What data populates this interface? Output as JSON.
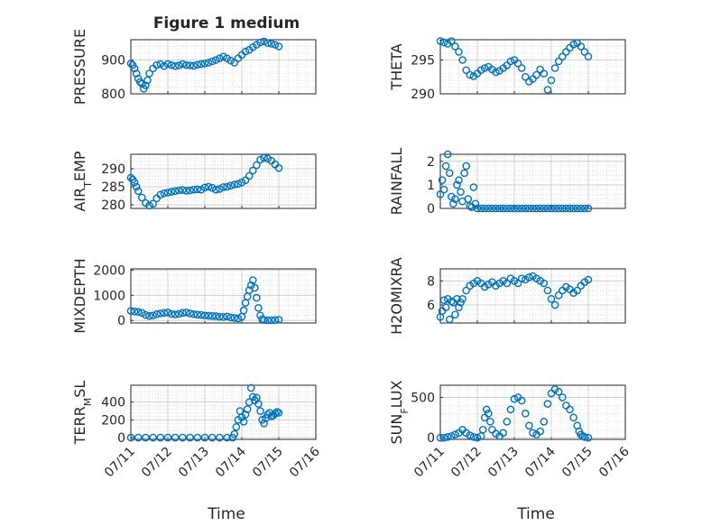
{
  "figure_title": "Figure 1 medium",
  "x_axis_label": "Time",
  "x_tick_labels": [
    "07/11",
    "07/12",
    "07/13",
    "07/14",
    "07/15",
    "07/16"
  ],
  "colors": {
    "marker": "#0072BD",
    "axes": "#262626",
    "grid": "#c8c8c8"
  },
  "chart_data": [
    {
      "type": "scatter",
      "ylabel": "PRESSURE",
      "title": "Figure 1 medium",
      "xlim": [
        "07/11",
        "07/16"
      ],
      "ylim": [
        800,
        960
      ],
      "yticks": [
        800,
        900
      ],
      "grid": true,
      "x": [
        11.0,
        11.05,
        11.1,
        11.15,
        11.2,
        11.25,
        11.3,
        11.35,
        11.4,
        11.45,
        11.5,
        11.6,
        11.7,
        11.8,
        11.9,
        12.0,
        12.1,
        12.2,
        12.3,
        12.4,
        12.5,
        12.6,
        12.7,
        12.8,
        12.9,
        13.0,
        13.1,
        13.2,
        13.3,
        13.4,
        13.5,
        13.6,
        13.7,
        13.8,
        13.9,
        14.0,
        14.1,
        14.2,
        14.3,
        14.4,
        14.5,
        14.6,
        14.7,
        14.8,
        14.9,
        15.0
      ],
      "y": [
        890,
        885,
        875,
        860,
        845,
        835,
        830,
        815,
        825,
        840,
        860,
        875,
        885,
        888,
        882,
        888,
        885,
        882,
        884,
        888,
        885,
        884,
        883,
        886,
        888,
        890,
        892,
        896,
        900,
        905,
        910,
        905,
        898,
        892,
        905,
        915,
        925,
        930,
        938,
        945,
        952,
        955,
        950,
        948,
        945,
        940
      ]
    },
    {
      "type": "scatter",
      "ylabel": "THETA",
      "xlim": [
        "07/11",
        "07/16"
      ],
      "ylim": [
        290,
        298
      ],
      "yticks": [
        290,
        295
      ],
      "grid": true,
      "x": [
        11.0,
        11.1,
        11.2,
        11.3,
        11.4,
        11.5,
        11.6,
        11.7,
        11.8,
        11.9,
        12.0,
        12.1,
        12.2,
        12.3,
        12.4,
        12.5,
        12.6,
        12.7,
        12.8,
        12.9,
        13.0,
        13.1,
        13.2,
        13.3,
        13.4,
        13.5,
        13.6,
        13.7,
        13.8,
        13.9,
        14.0,
        14.1,
        14.2,
        14.3,
        14.4,
        14.5,
        14.6,
        14.7,
        14.8,
        14.9,
        15.0
      ],
      "y": [
        297.8,
        297.6,
        297.4,
        297.8,
        297.0,
        296.2,
        295.0,
        293.5,
        292.8,
        292.6,
        293.0,
        293.5,
        293.8,
        294.0,
        293.6,
        293.2,
        293.4,
        293.8,
        294.2,
        294.8,
        295.0,
        294.5,
        293.8,
        292.5,
        291.8,
        292.2,
        292.8,
        293.6,
        293.0,
        290.6,
        292.0,
        293.8,
        294.8,
        295.5,
        296.2,
        296.8,
        297.3,
        297.5,
        297.0,
        296.2,
        295.5
      ]
    },
    {
      "type": "scatter",
      "ylabel": "AIR_TEMP",
      "xlim": [
        "07/11",
        "07/16"
      ],
      "ylim": [
        279,
        294
      ],
      "yticks": [
        280,
        285,
        290
      ],
      "grid": true,
      "x": [
        11.0,
        11.05,
        11.1,
        11.15,
        11.2,
        11.3,
        11.4,
        11.5,
        11.6,
        11.7,
        11.8,
        11.9,
        12.0,
        12.1,
        12.2,
        12.3,
        12.4,
        12.5,
        12.6,
        12.7,
        12.8,
        12.9,
        13.0,
        13.1,
        13.2,
        13.3,
        13.4,
        13.5,
        13.6,
        13.7,
        13.8,
        13.9,
        14.0,
        14.1,
        14.2,
        14.3,
        14.4,
        14.5,
        14.6,
        14.7,
        14.8,
        14.9,
        15.0
      ],
      "y": [
        287.5,
        287.0,
        286.2,
        285.0,
        283.8,
        282.0,
        280.5,
        279.8,
        280.3,
        281.8,
        282.8,
        283.2,
        283.4,
        283.6,
        283.8,
        284.0,
        284.1,
        283.9,
        284.0,
        284.2,
        284.3,
        284.2,
        284.8,
        285.0,
        284.7,
        284.2,
        284.4,
        284.9,
        285.0,
        285.3,
        285.6,
        285.8,
        286.2,
        286.8,
        288.0,
        289.5,
        291.0,
        292.5,
        293.0,
        292.8,
        292.2,
        291.2,
        290.2
      ]
    },
    {
      "type": "scatter",
      "ylabel": "RAINFALL",
      "xlim": [
        "07/11",
        "07/16"
      ],
      "ylim": [
        0,
        2.3
      ],
      "yticks": [
        0,
        1,
        2
      ],
      "grid": true,
      "x": [
        11.0,
        11.05,
        11.1,
        11.15,
        11.2,
        11.25,
        11.3,
        11.35,
        11.4,
        11.45,
        11.5,
        11.55,
        11.6,
        11.65,
        11.7,
        11.75,
        11.8,
        11.85,
        11.9,
        11.95,
        12.0,
        12.1,
        12.2,
        12.3,
        12.4,
        12.5,
        12.6,
        12.7,
        12.8,
        12.9,
        13.0,
        13.1,
        13.2,
        13.3,
        13.4,
        13.5,
        13.6,
        13.7,
        13.8,
        13.9,
        14.0,
        14.1,
        14.2,
        14.3,
        14.4,
        14.5,
        14.6,
        14.7,
        14.8,
        14.9,
        15.0
      ],
      "y": [
        0.6,
        1.2,
        0.8,
        1.8,
        2.3,
        1.5,
        0.5,
        0.2,
        0.4,
        1.0,
        1.2,
        0.7,
        0.3,
        1.5,
        1.8,
        0.4,
        0.1,
        0.05,
        0.9,
        0.2,
        0,
        0,
        0,
        0,
        0,
        0,
        0,
        0,
        0,
        0,
        0,
        0,
        0,
        0,
        0,
        0,
        0,
        0,
        0,
        0,
        0,
        0,
        0,
        0,
        0,
        0,
        0,
        0,
        0,
        0,
        0
      ]
    },
    {
      "type": "scatter",
      "ylabel": "MIXDEPTH",
      "xlim": [
        "07/11",
        "07/16"
      ],
      "ylim": [
        -100,
        2050
      ],
      "yticks": [
        0,
        1000,
        2000
      ],
      "grid": true,
      "x": [
        11.0,
        11.1,
        11.2,
        11.3,
        11.4,
        11.5,
        11.6,
        11.7,
        11.8,
        11.9,
        12.0,
        12.1,
        12.2,
        12.3,
        12.4,
        12.5,
        12.6,
        12.7,
        12.8,
        12.9,
        13.0,
        13.1,
        13.2,
        13.3,
        13.4,
        13.5,
        13.6,
        13.7,
        13.8,
        13.9,
        14.0,
        14.05,
        14.1,
        14.15,
        14.2,
        14.25,
        14.3,
        14.35,
        14.4,
        14.45,
        14.5,
        14.55,
        14.6,
        14.7,
        14.8,
        14.9,
        15.0
      ],
      "y": [
        380,
        360,
        340,
        300,
        220,
        180,
        200,
        250,
        280,
        300,
        320,
        260,
        240,
        260,
        300,
        320,
        280,
        250,
        230,
        220,
        200,
        190,
        180,
        170,
        150,
        140,
        160,
        120,
        100,
        80,
        150,
        400,
        700,
        950,
        1200,
        1400,
        1600,
        1300,
        900,
        500,
        200,
        50,
        20,
        10,
        10,
        20,
        30
      ]
    },
    {
      "type": "scatter",
      "ylabel": "H2OMIXRA",
      "xlim": [
        "07/11",
        "07/16"
      ],
      "ylim": [
        4.5,
        9
      ],
      "yticks": [
        6,
        8
      ],
      "grid": true,
      "x": [
        11.0,
        11.05,
        11.1,
        11.15,
        11.2,
        11.25,
        11.3,
        11.35,
        11.4,
        11.45,
        11.5,
        11.55,
        11.6,
        11.7,
        11.8,
        11.9,
        12.0,
        12.1,
        12.2,
        12.3,
        12.4,
        12.5,
        12.6,
        12.7,
        12.8,
        12.9,
        13.0,
        13.1,
        13.2,
        13.3,
        13.4,
        13.5,
        13.6,
        13.7,
        13.8,
        13.9,
        14.0,
        14.1,
        14.2,
        14.3,
        14.4,
        14.5,
        14.6,
        14.7,
        14.8,
        14.9,
        15.0
      ],
      "y": [
        5.0,
        5.5,
        6.4,
        5.8,
        6.5,
        4.8,
        6.3,
        6.2,
        5.2,
        6.5,
        5.8,
        6.2,
        6.5,
        7.2,
        7.6,
        7.8,
        8.0,
        7.8,
        7.5,
        7.7,
        7.9,
        7.6,
        7.8,
        8.0,
        7.8,
        8.2,
        8.0,
        7.8,
        8.2,
        8.1,
        8.3,
        8.4,
        8.2,
        8.0,
        7.8,
        7.2,
        6.5,
        6.0,
        6.8,
        7.2,
        7.5,
        7.3,
        7.0,
        7.2,
        7.6,
        7.9,
        8.1
      ]
    },
    {
      "type": "scatter",
      "ylabel": "TERR_MSL",
      "xlim": [
        "07/11",
        "07/16"
      ],
      "ylim": [
        -20,
        590
      ],
      "yticks": [
        0,
        200,
        400
      ],
      "grid": true,
      "x": [
        11.0,
        11.2,
        11.4,
        11.6,
        11.8,
        12.0,
        12.2,
        12.4,
        12.6,
        12.8,
        13.0,
        13.2,
        13.4,
        13.6,
        13.75,
        13.8,
        13.85,
        13.9,
        13.95,
        14.0,
        14.05,
        14.1,
        14.15,
        14.2,
        14.25,
        14.3,
        14.35,
        14.4,
        14.45,
        14.5,
        14.55,
        14.6,
        14.65,
        14.7,
        14.75,
        14.8,
        14.85,
        14.9,
        14.95,
        15.0
      ],
      "y": [
        0,
        0,
        0,
        0,
        0,
        0,
        0,
        0,
        0,
        0,
        0,
        0,
        0,
        0,
        0,
        40,
        120,
        200,
        300,
        230,
        180,
        260,
        320,
        400,
        560,
        460,
        420,
        450,
        380,
        300,
        200,
        160,
        220,
        260,
        280,
        240,
        250,
        270,
        290,
        280
      ]
    },
    {
      "type": "scatter",
      "ylabel": "SUN_FLUX",
      "xlim": [
        "07/11",
        "07/16"
      ],
      "ylim": [
        -20,
        650
      ],
      "yticks": [
        0,
        500
      ],
      "grid": true,
      "x": [
        11.0,
        11.1,
        11.2,
        11.3,
        11.4,
        11.5,
        11.6,
        11.7,
        11.8,
        11.9,
        12.0,
        12.1,
        12.15,
        12.2,
        12.25,
        12.3,
        12.35,
        12.4,
        12.5,
        12.6,
        12.7,
        12.8,
        12.9,
        13.0,
        13.1,
        13.2,
        13.3,
        13.4,
        13.5,
        13.6,
        13.7,
        13.8,
        13.9,
        14.0,
        14.1,
        14.2,
        14.3,
        14.4,
        14.5,
        14.6,
        14.7,
        14.75,
        14.8,
        14.85,
        14.9,
        15.0
      ],
      "y": [
        0,
        0,
        10,
        20,
        40,
        60,
        100,
        60,
        30,
        10,
        0,
        20,
        100,
        250,
        350,
        300,
        200,
        100,
        50,
        20,
        60,
        200,
        350,
        480,
        500,
        460,
        300,
        150,
        60,
        40,
        80,
        200,
        420,
        550,
        600,
        570,
        500,
        400,
        350,
        250,
        150,
        80,
        40,
        20,
        10,
        0
      ]
    }
  ]
}
